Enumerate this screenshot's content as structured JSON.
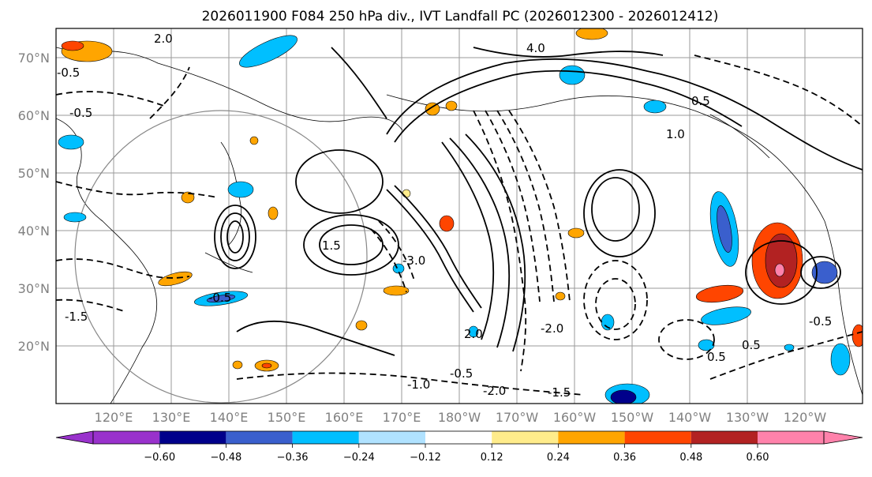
{
  "title": "2026011900 F084 250 hPa div., IVT Landfall PC (2026012300 - 2026012412)",
  "lat_labels": [
    "70°N",
    "60°N",
    "50°N",
    "40°N",
    "30°N",
    "20°N"
  ],
  "lon_labels": [
    "120°E",
    "130°E",
    "140°E",
    "150°E",
    "160°E",
    "170°E",
    "180°W",
    "170°W",
    "160°W",
    "150°W",
    "140°W",
    "130°W",
    "120°W"
  ],
  "colorbar": {
    "colors": [
      "#9932cc",
      "#00008b",
      "#3a5fcd",
      "#00bfff",
      "#b0e2ff",
      "#ffffff",
      "#ffec8b",
      "#ffa500",
      "#ff4500",
      "#b22222",
      "#ff82ab"
    ],
    "tick_labels": [
      "−0.60",
      "−0.48",
      "−0.36",
      "−0.24",
      "−0.12",
      "0.12",
      "0.24",
      "0.36",
      "0.48",
      "0.60"
    ]
  },
  "contour_labels": [
    "4.0",
    "1.0",
    "0.5",
    "-0.5",
    "-1.5",
    "2.0",
    "-2.0",
    "1.5",
    "-0.5",
    "0.5",
    "-1.0",
    "-3.0",
    "-0.5",
    "-0.5",
    "0.5",
    "-2.0",
    "-1.5",
    "-0.5",
    "2.0"
  ]
}
